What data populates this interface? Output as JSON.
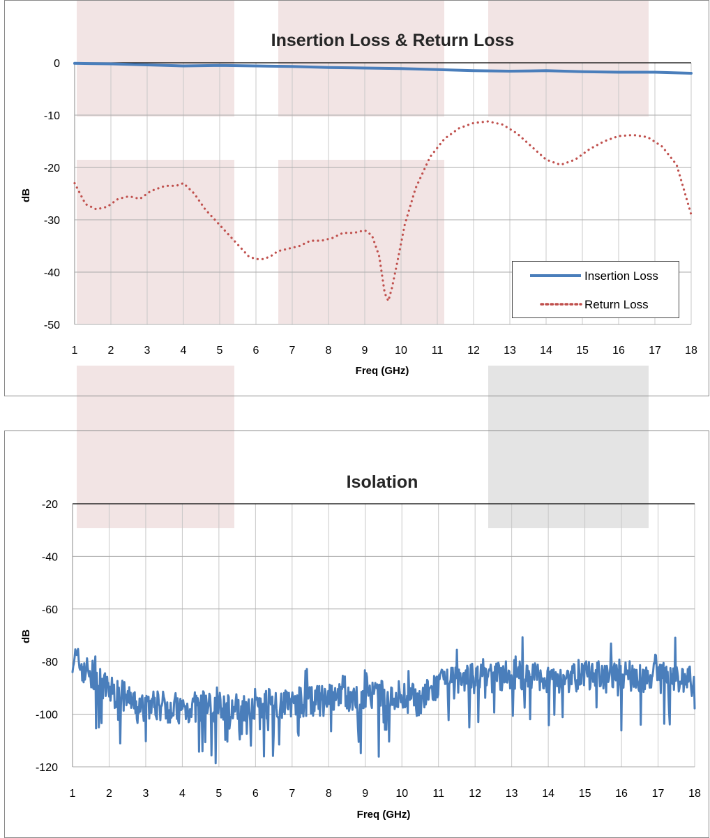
{
  "charts": [
    {
      "title": "Insertion Loss & Return Loss",
      "xlabel": "Freq (GHz)",
      "ylabel": "dB",
      "legend": [
        "Insertion Loss",
        "Return Loss"
      ]
    },
    {
      "title": "Isolation",
      "xlabel": "Freq (GHz)",
      "ylabel": "dB"
    }
  ],
  "chart_data": [
    {
      "type": "line",
      "title": "Insertion Loss & Return Loss",
      "xlabel": "Freq (GHz)",
      "ylabel": "dB",
      "xlim": [
        1,
        18
      ],
      "ylim": [
        -50,
        0
      ],
      "xticks": [
        1,
        2,
        3,
        4,
        5,
        6,
        7,
        8,
        9,
        10,
        11,
        12,
        13,
        14,
        15,
        16,
        17,
        18
      ],
      "yticks": [
        0,
        -10,
        -20,
        -30,
        -40,
        -50
      ],
      "grid": true,
      "legend_position": "bottom-right",
      "series": [
        {
          "name": "Insertion Loss",
          "style": "solid",
          "color": "#4a7ebb",
          "x": [
            1,
            2,
            3,
            4,
            5,
            6,
            7,
            8,
            9,
            10,
            11,
            12,
            13,
            14,
            15,
            16,
            17,
            18
          ],
          "y": [
            -0.1,
            -0.2,
            -0.4,
            -0.6,
            -0.5,
            -0.6,
            -0.7,
            -0.9,
            -1.0,
            -1.1,
            -1.3,
            -1.5,
            -1.6,
            -1.5,
            -1.7,
            -1.8,
            -1.8,
            -2.0
          ]
        },
        {
          "name": "Return Loss",
          "style": "dotted",
          "color": "#c0504d",
          "x": [
            1.0,
            1.3,
            1.6,
            1.9,
            2.2,
            2.5,
            2.8,
            3.1,
            3.5,
            3.8,
            4.0,
            4.3,
            4.6,
            5.0,
            5.4,
            5.8,
            6.0,
            6.2,
            6.4,
            6.6,
            6.9,
            7.2,
            7.5,
            7.8,
            8.1,
            8.4,
            8.7,
            9.0,
            9.2,
            9.4,
            9.55,
            9.65,
            9.75,
            9.9,
            10.1,
            10.4,
            10.8,
            11.2,
            11.6,
            12.0,
            12.4,
            12.8,
            13.2,
            13.6,
            14.0,
            14.4,
            14.8,
            15.2,
            15.6,
            16.0,
            16.4,
            16.8,
            17.2,
            17.6,
            18.0
          ],
          "y": [
            -23,
            -27,
            -28,
            -27.5,
            -26,
            -25.5,
            -26,
            -24.5,
            -23.5,
            -23.5,
            -23,
            -25,
            -28,
            -31,
            -34,
            -37,
            -37.5,
            -37.5,
            -37,
            -36,
            -35.5,
            -35,
            -34,
            -34,
            -33.5,
            -32.5,
            -32.5,
            -32,
            -33,
            -37,
            -44,
            -45.5,
            -43,
            -38,
            -31,
            -24,
            -18,
            -14.5,
            -12.5,
            -11.5,
            -11.2,
            -11.8,
            -13.5,
            -16,
            -18.5,
            -19.5,
            -18.5,
            -16.5,
            -15,
            -14,
            -13.8,
            -14.2,
            -16,
            -19.5,
            -29
          ]
        }
      ]
    },
    {
      "type": "line",
      "title": "Isolation",
      "xlabel": "Freq (GHz)",
      "ylabel": "dB",
      "xlim": [
        1,
        18
      ],
      "ylim": [
        -120,
        -20
      ],
      "xticks": [
        1,
        2,
        3,
        4,
        5,
        6,
        7,
        8,
        9,
        10,
        11,
        12,
        13,
        14,
        15,
        16,
        17,
        18
      ],
      "yticks": [
        -20,
        -40,
        -60,
        -80,
        -100,
        -120
      ],
      "grid": true,
      "series": [
        {
          "name": "",
          "style": "solid",
          "color": "#4a7ebb",
          "x": [
            1.0,
            1.2,
            1.5,
            1.8,
            2.0,
            2.5,
            2.8,
            3.0,
            3.5,
            4.0,
            4.5,
            5.0,
            5.5,
            6.0,
            6.5,
            7.0,
            7.5,
            8.0,
            8.5,
            9.0,
            9.5,
            10.0,
            10.5,
            11.0,
            11.5,
            12.0,
            12.5,
            13.0,
            13.5,
            14.0,
            14.5,
            15.0,
            15.5,
            16.0,
            16.5,
            17.0,
            17.5,
            18.0
          ],
          "y": [
            -78,
            -81,
            -85,
            -89,
            -91,
            -94,
            -99,
            -96,
            -97,
            -98,
            -97,
            -97,
            -98,
            -96,
            -96,
            -96,
            -95,
            -95,
            -94,
            -94,
            -93,
            -93,
            -95,
            -89,
            -88,
            -86,
            -86,
            -85,
            -86,
            -86,
            -86,
            -85,
            -86,
            -85,
            -86,
            -86,
            -86,
            -88
          ]
        }
      ]
    }
  ]
}
